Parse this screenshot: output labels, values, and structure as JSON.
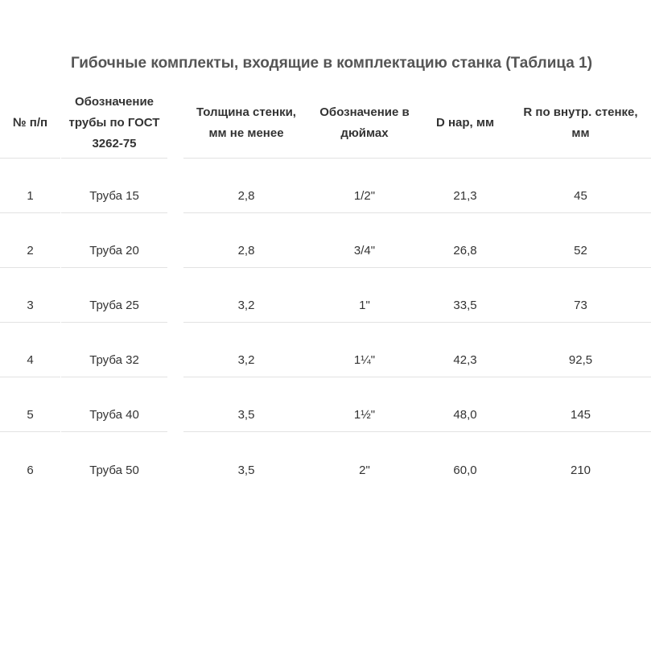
{
  "title": "Гибочные комплекты, входящие в комплектацию станка (Таблица 1)",
  "headers": [
    "№ п/п",
    "Обозначение трубы по ГОСТ 3262-75",
    "Толщина стенки, мм не менее",
    "Обозначение в дюймах",
    "D нар, мм",
    "R по внутр. стенке, мм"
  ],
  "rows": [
    [
      "1",
      "Труба 15",
      "2,8",
      "1/2\"",
      "21,3",
      "45"
    ],
    [
      "2",
      "Труба 20",
      "2,8",
      "3/4\"",
      "26,8",
      "52"
    ],
    [
      "3",
      "Труба 25",
      "3,2",
      "1\"",
      "33,5",
      "73"
    ],
    [
      "4",
      "Труба 32",
      "3,2",
      "1¼\"",
      "42,3",
      "92,5"
    ],
    [
      "5",
      "Труба 40",
      "3,5",
      "1½\"",
      "48,0",
      "145"
    ],
    [
      "6",
      "Труба 50",
      "3,5",
      "2\"",
      "60,0",
      "210"
    ]
  ]
}
